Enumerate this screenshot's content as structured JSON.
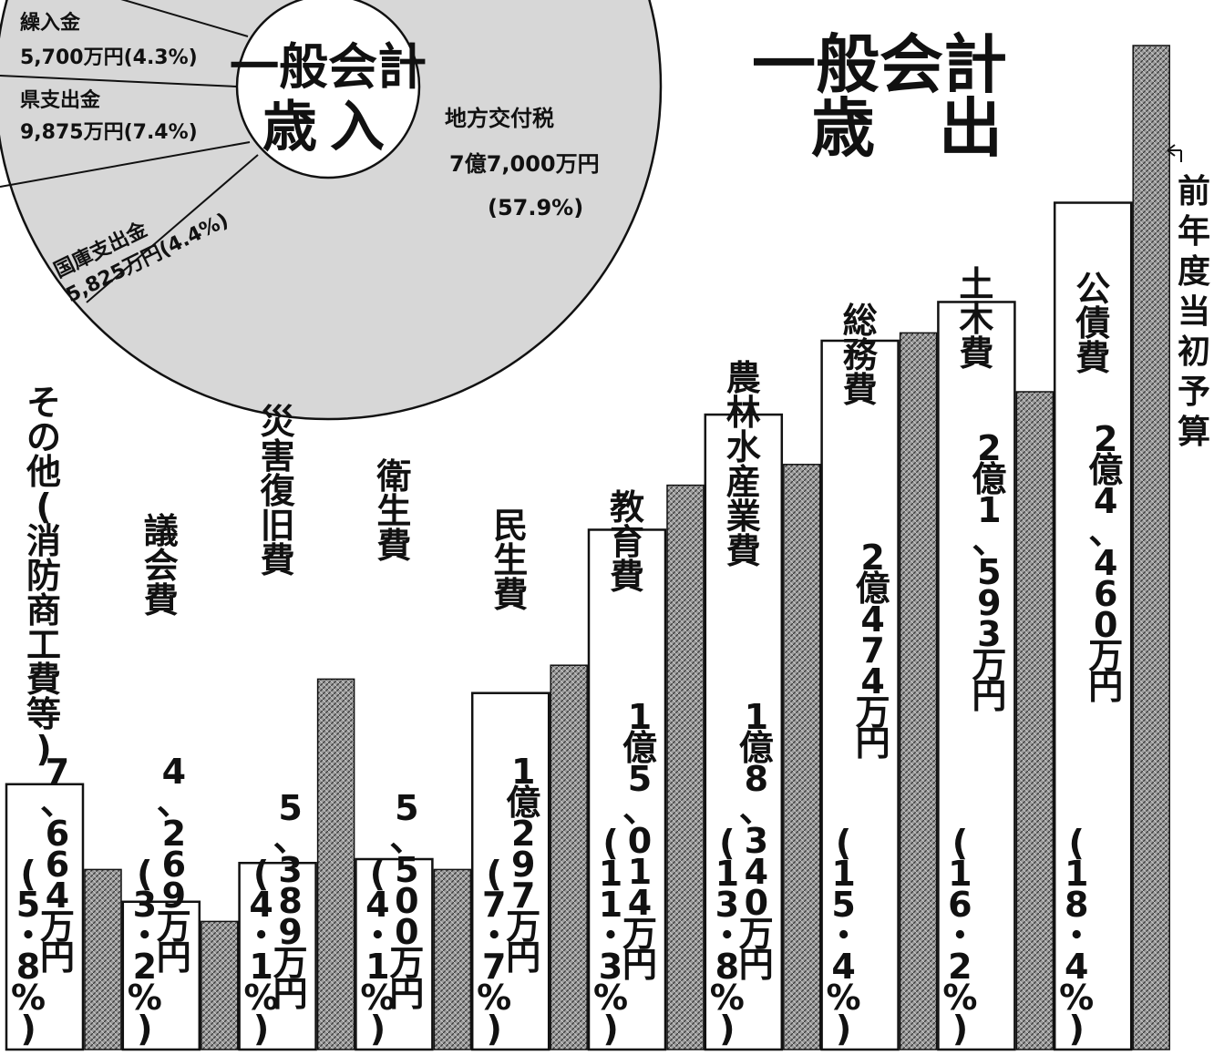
{
  "pie": {
    "title_line1": "一般会計",
    "title_line2": "歳入",
    "labels": [
      {
        "line1": "繰入金",
        "line2": "5,700万円(4.3%)"
      },
      {
        "line1": "県支出金",
        "line2": "9,875万円(7.4%)"
      },
      {
        "line1": "国庫支出金",
        "line2": "5,825万円(4.4%)"
      },
      {
        "line1": "地方交付税",
        "line2": "7億7,000万円",
        "line3": "(57.9%)"
      }
    ]
  },
  "bar": {
    "title_line1": "一般会計",
    "title_line2": "歳　出",
    "legend_prev_year": "前年度当初予算"
  },
  "colors": {
    "pie_fill": "#d7d7d7",
    "prev_year_fill": "#8a8a8a",
    "current_fill": "#ffffff",
    "ink": "#111111"
  },
  "chart_data": [
    {
      "type": "pie",
      "title": "一般会計 歳入",
      "slices": [
        {
          "name": "地方交付税",
          "value": 77000,
          "value_label": "7億7,000万円",
          "percent": 57.9
        },
        {
          "name": "県支出金",
          "value": 9875,
          "value_label": "9,875万円",
          "percent": 7.4
        },
        {
          "name": "国庫支出金",
          "value": 5825,
          "value_label": "5,825万円",
          "percent": 4.4
        },
        {
          "name": "繰入金",
          "value": 5700,
          "value_label": "5,700万円",
          "percent": 4.3
        }
      ]
    },
    {
      "type": "bar",
      "title": "一般会計 歳出",
      "categories": [
        "その他(消防商工費等)",
        "議会費",
        "災害復旧費",
        "衛生費",
        "民生費",
        "教育費",
        "農林水産業費",
        "総務費",
        "土木費",
        "公債費"
      ],
      "series": [
        {
          "name": "",
          "values": [
            7664,
            4269,
            5389,
            5500,
            10297,
            15014,
            18340,
            20474,
            21593,
            24460
          ]
        },
        {
          "name": "前年度当初予算",
          "values": [
            5200,
            3700,
            10700,
            5200,
            11100,
            16300,
            16900,
            20700,
            19000,
            29000
          ]
        }
      ],
      "value_labels": [
        "7、664万円",
        "4、269万円",
        "5、389万円",
        "5、500万円",
        "1億297万円",
        "1億5、014万円",
        "1億8、340万円",
        "2億474万円",
        "2億1、593万円",
        "2億4、460万円"
      ],
      "percent_labels": [
        "(5・8%)",
        "(3・2%)",
        "(4・1%)",
        "(4・1%)",
        "(7・7%)",
        "(11・3%)",
        "(13・8%)",
        "(15・4%)",
        "(16・2%)",
        "(18・4%)"
      ],
      "ylim": [
        0,
        30000
      ],
      "legend": "right"
    }
  ]
}
